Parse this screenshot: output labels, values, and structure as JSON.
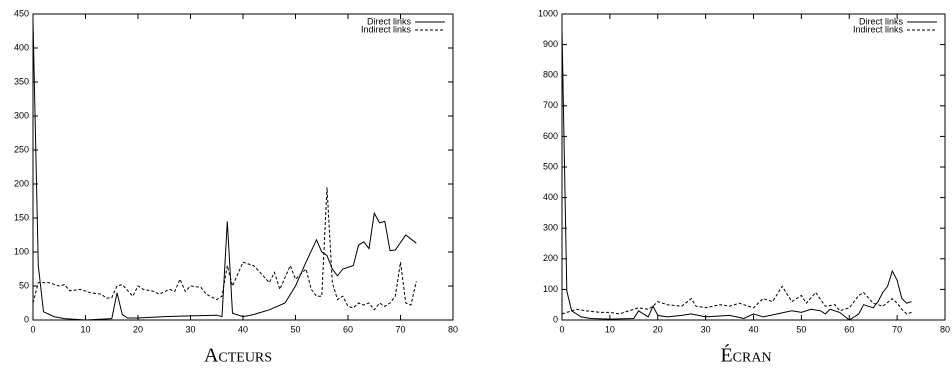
{
  "chart_data": [
    {
      "type": "line",
      "title": "Acteurs",
      "xlim": [
        0,
        80
      ],
      "xticks": [
        0,
        10,
        20,
        30,
        40,
        50,
        60,
        70,
        80
      ],
      "ylim": [
        0,
        450
      ],
      "yticks": [
        0,
        50,
        100,
        150,
        200,
        250,
        300,
        350,
        400,
        450
      ],
      "legend": "upper right",
      "series": [
        {
          "name": "Direct links",
          "color": "#000000",
          "line_style": "solid",
          "x": [
            0,
            1,
            2,
            4,
            6,
            10,
            15,
            16,
            17,
            18,
            20,
            25,
            30,
            35,
            36,
            37,
            38,
            40,
            42,
            45,
            48,
            50,
            52,
            54,
            55,
            56,
            57,
            58,
            59,
            61,
            62,
            63,
            64,
            65,
            66,
            67,
            68,
            69,
            71,
            73
          ],
          "values": [
            440,
            80,
            12,
            5,
            2,
            0,
            2,
            40,
            8,
            3,
            3,
            5,
            6,
            7,
            5,
            145,
            10,
            5,
            8,
            15,
            25,
            50,
            85,
            118,
            100,
            95,
            75,
            65,
            75,
            80,
            110,
            115,
            105,
            157,
            143,
            145,
            102,
            103,
            125,
            113
          ]
        },
        {
          "name": "Indirect links",
          "color": "#000000",
          "line_style": "dashed",
          "x": [
            0,
            1,
            3,
            5,
            6,
            7,
            9,
            11,
            13,
            14,
            15,
            16,
            17,
            19,
            20,
            21,
            23,
            24,
            26,
            27,
            28,
            29,
            30,
            32,
            33,
            35,
            36,
            37,
            38,
            40,
            42,
            43,
            45,
            46,
            47,
            49,
            50,
            52,
            53,
            54,
            55,
            56,
            57,
            58,
            59,
            60,
            61,
            62,
            63,
            64,
            65,
            66,
            67,
            68,
            69,
            70,
            71,
            72,
            73
          ],
          "values": [
            25,
            55,
            55,
            50,
            52,
            43,
            45,
            40,
            38,
            32,
            33,
            50,
            52,
            35,
            50,
            45,
            42,
            38,
            45,
            42,
            60,
            42,
            50,
            48,
            38,
            30,
            35,
            80,
            50,
            85,
            80,
            72,
            55,
            70,
            45,
            80,
            60,
            75,
            45,
            35,
            35,
            195,
            55,
            30,
            35,
            20,
            18,
            25,
            22,
            25,
            15,
            25,
            20,
            25,
            35,
            85,
            25,
            22,
            57
          ]
        }
      ]
    },
    {
      "type": "line",
      "title": "Écran",
      "xlim": [
        0,
        80
      ],
      "xticks": [
        0,
        10,
        20,
        30,
        40,
        50,
        60,
        70,
        80
      ],
      "ylim": [
        0,
        1000
      ],
      "yticks": [
        0,
        100,
        200,
        300,
        400,
        500,
        600,
        700,
        800,
        900,
        1000
      ],
      "legend": "upper right",
      "series": [
        {
          "name": "Direct links",
          "color": "#000000",
          "line_style": "solid",
          "x": [
            0,
            1,
            2,
            4,
            6,
            10,
            15,
            16,
            17,
            18,
            19,
            20,
            22,
            25,
            27,
            30,
            35,
            38,
            40,
            42,
            45,
            48,
            50,
            52,
            54,
            55,
            56,
            58,
            60,
            62,
            63,
            65,
            66,
            67,
            68,
            69,
            70,
            71,
            72,
            73
          ],
          "values": [
            950,
            95,
            30,
            10,
            5,
            3,
            5,
            30,
            20,
            10,
            45,
            15,
            10,
            15,
            20,
            10,
            15,
            5,
            20,
            10,
            20,
            30,
            25,
            35,
            30,
            20,
            35,
            25,
            0,
            20,
            50,
            40,
            60,
            90,
            110,
            160,
            130,
            70,
            55,
            60
          ]
        },
        {
          "name": "Indirect links",
          "color": "#000000",
          "line_style": "dashed",
          "x": [
            0,
            1,
            3,
            5,
            8,
            10,
            12,
            14,
            16,
            18,
            19,
            20,
            22,
            25,
            27,
            28,
            30,
            33,
            35,
            37,
            40,
            42,
            44,
            46,
            48,
            50,
            51,
            53,
            55,
            57,
            58,
            60,
            62,
            63,
            65,
            67,
            69,
            70,
            71,
            72,
            73
          ],
          "values": [
            20,
            25,
            35,
            30,
            25,
            25,
            20,
            30,
            40,
            35,
            45,
            60,
            50,
            45,
            70,
            45,
            40,
            50,
            45,
            55,
            40,
            70,
            60,
            110,
            60,
            80,
            55,
            90,
            45,
            50,
            30,
            40,
            80,
            90,
            55,
            45,
            70,
            55,
            35,
            20,
            25
          ]
        }
      ]
    }
  ]
}
